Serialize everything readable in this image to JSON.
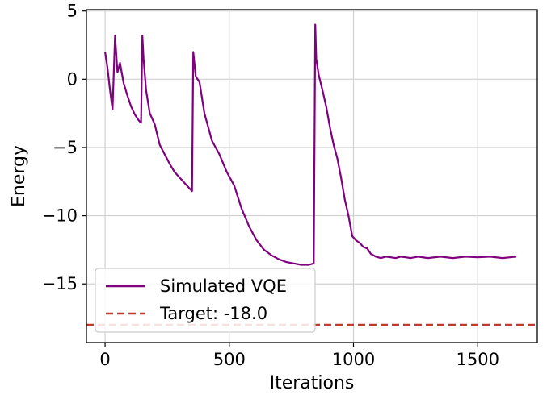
{
  "chart_data": {
    "type": "line",
    "title": "",
    "xlabel": "Iterations",
    "ylabel": "Energy",
    "xlim": [
      -75,
      1740
    ],
    "ylim": [
      -19.3,
      5.1
    ],
    "xticks": [
      0,
      500,
      1000,
      1500
    ],
    "yticks": [
      5,
      0,
      -5,
      -10,
      -15
    ],
    "xtick_labels": [
      "0",
      "500",
      "1000",
      "1500"
    ],
    "ytick_labels": [
      "5",
      "0",
      "−5",
      "−10",
      "−15"
    ],
    "grid": true,
    "legend_position": "lower-left",
    "series": [
      {
        "name": "Simulated VQE",
        "color": "#800080",
        "style": "solid",
        "x": [
          0,
          10,
          20,
          30,
          40,
          50,
          60,
          75,
          90,
          105,
          120,
          135,
          145,
          150,
          155,
          165,
          180,
          200,
          220,
          240,
          260,
          280,
          300,
          320,
          340,
          350,
          355,
          365,
          380,
          400,
          430,
          460,
          490,
          520,
          550,
          580,
          610,
          640,
          670,
          700,
          730,
          760,
          790,
          820,
          840,
          846,
          850,
          860,
          875,
          890,
          905,
          920,
          935,
          950,
          965,
          980,
          995,
          1010,
          1025,
          1040,
          1055,
          1070,
          1090,
          1110,
          1130,
          1150,
          1170,
          1190,
          1210,
          1230,
          1260,
          1300,
          1350,
          1400,
          1450,
          1500,
          1550,
          1600,
          1655
        ],
        "y": [
          2.0,
          0.8,
          -0.8,
          -2.2,
          3.2,
          0.5,
          1.2,
          -0.3,
          -1.2,
          -2.0,
          -2.6,
          -3.0,
          -3.2,
          3.2,
          1.5,
          -0.8,
          -2.5,
          -3.3,
          -4.8,
          -5.5,
          -6.2,
          -6.8,
          -7.2,
          -7.6,
          -8.0,
          -8.2,
          2.0,
          0.2,
          -0.2,
          -2.5,
          -4.5,
          -5.5,
          -6.8,
          -7.8,
          -9.5,
          -10.8,
          -11.8,
          -12.5,
          -12.9,
          -13.2,
          -13.4,
          -13.5,
          -13.6,
          -13.6,
          -13.5,
          4.0,
          1.5,
          0.3,
          -0.8,
          -2.0,
          -3.5,
          -4.8,
          -5.8,
          -7.2,
          -8.8,
          -10.0,
          -11.5,
          -11.8,
          -12.0,
          -12.3,
          -12.4,
          -12.8,
          -13.0,
          -13.1,
          -13.0,
          -13.05,
          -13.1,
          -13.0,
          -13.05,
          -13.1,
          -13.0,
          -13.1,
          -13.0,
          -13.1,
          -13.0,
          -13.05,
          -13.0,
          -13.1,
          -13.0
        ]
      },
      {
        "name": "Target: -18.0",
        "color": "#c0392b",
        "style": "dashed",
        "constant_y": -18.0
      }
    ]
  }
}
